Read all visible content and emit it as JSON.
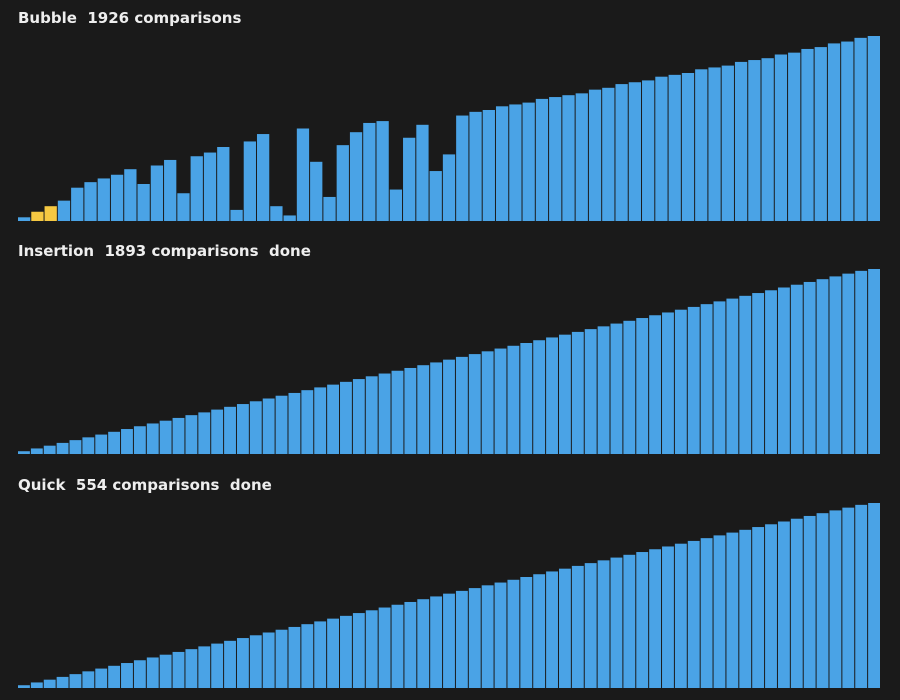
{
  "colors": {
    "background": "#1a1a1a",
    "bar": "#4aa3e6",
    "highlight": "#f5c842",
    "text": "#eeeeee"
  },
  "chart_data": [
    {
      "type": "bar",
      "title": "Bubble  1926 comparisons",
      "algorithm": "Bubble",
      "comparisons": 1926,
      "status": "",
      "highlighted_indices": [
        1,
        2
      ],
      "values": [
        2,
        5,
        8,
        11,
        18,
        21,
        23,
        25,
        28,
        20,
        30,
        33,
        15,
        35,
        37,
        40,
        6,
        43,
        47,
        8,
        3,
        50,
        32,
        13,
        41,
        48,
        53,
        54,
        17,
        45,
        52,
        27,
        36,
        57,
        59,
        60,
        62,
        63,
        64,
        66,
        67,
        68,
        69,
        71,
        72,
        74,
        75,
        76,
        78,
        79,
        80,
        82,
        83,
        84,
        86,
        87,
        88,
        90,
        91,
        93,
        94,
        96,
        97,
        99,
        100
      ]
    },
    {
      "type": "bar",
      "title": "Insertion  1893 comparisons  done",
      "algorithm": "Insertion",
      "comparisons": 1893,
      "status": "done",
      "highlighted_indices": [],
      "values": [
        1.5,
        3.0,
        4.5,
        6.0,
        7.5,
        9.0,
        10.5,
        12.0,
        13.5,
        15.0,
        16.5,
        18.0,
        19.5,
        21.0,
        22.5,
        24.0,
        25.5,
        27.0,
        28.5,
        30.0,
        31.5,
        33.0,
        34.5,
        36.0,
        37.5,
        39.0,
        40.5,
        42.0,
        43.5,
        45.0,
        46.5,
        48.0,
        49.5,
        51.0,
        52.5,
        54.0,
        55.5,
        57.0,
        58.5,
        60.0,
        61.5,
        63.0,
        64.5,
        66.0,
        67.5,
        69.0,
        70.5,
        72.0,
        73.5,
        75.0,
        76.5,
        78.0,
        79.5,
        81.0,
        82.5,
        84.0,
        85.5,
        87.0,
        88.5,
        90.0,
        91.5,
        93.0,
        94.5,
        96.0,
        97.5,
        99.0,
        100.0
      ]
    },
    {
      "type": "bar",
      "title": "Quick  554 comparisons  done",
      "algorithm": "Quick",
      "comparisons": 554,
      "status": "done",
      "highlighted_indices": [],
      "values": [
        1.5,
        3.0,
        4.5,
        6.0,
        7.5,
        9.0,
        10.5,
        12.0,
        13.5,
        15.0,
        16.5,
        18.0,
        19.5,
        21.0,
        22.5,
        24.0,
        25.5,
        27.0,
        28.5,
        30.0,
        31.5,
        33.0,
        34.5,
        36.0,
        37.5,
        39.0,
        40.5,
        42.0,
        43.5,
        45.0,
        46.5,
        48.0,
        49.5,
        51.0,
        52.5,
        54.0,
        55.5,
        57.0,
        58.5,
        60.0,
        61.5,
        63.0,
        64.5,
        66.0,
        67.5,
        69.0,
        70.5,
        72.0,
        73.5,
        75.0,
        76.5,
        78.0,
        79.5,
        81.0,
        82.5,
        84.0,
        85.5,
        87.0,
        88.5,
        90.0,
        91.5,
        93.0,
        94.5,
        96.0,
        97.5,
        99.0,
        100.0
      ]
    }
  ]
}
